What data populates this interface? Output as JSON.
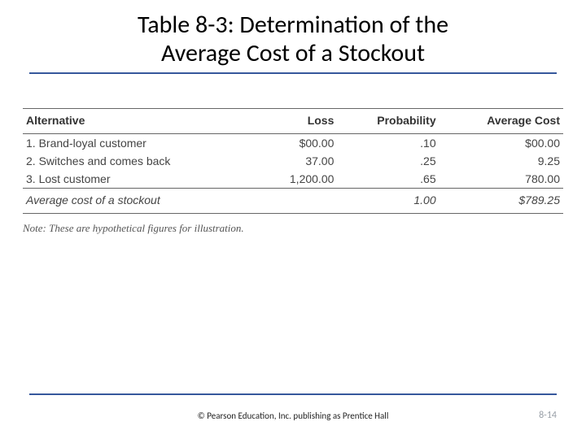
{
  "title": {
    "line1": "Table 8-3:  Determination of the",
    "line2": "Average Cost of a Stockout",
    "fontsize": 30,
    "color": "#000000",
    "underline_color": "#36589c"
  },
  "table": {
    "columns": [
      {
        "label": "Alternative",
        "align": "left"
      },
      {
        "label": "Loss",
        "align": "right"
      },
      {
        "label": "Probability",
        "align": "right"
      },
      {
        "label": "Average Cost",
        "align": "right"
      }
    ],
    "rows": [
      {
        "alt": "1. Brand-loyal customer",
        "loss": "$00.00",
        "prob": ".10",
        "avg": "$00.00"
      },
      {
        "alt": "2. Switches and comes back",
        "loss": "37.00",
        "prob": ".25",
        "avg": "9.25"
      },
      {
        "alt": "3. Lost customer",
        "loss": "1,200.00",
        "prob": ".65",
        "avg": "780.00"
      }
    ],
    "summary": {
      "label": "Average cost of a stockout",
      "loss": "",
      "prob": "1.00",
      "avg": "$789.25"
    },
    "header_fontsize": 14,
    "body_fontsize": 14,
    "border_color": "#666666",
    "text_color": "#444444"
  },
  "note": {
    "text": "Note: These are hypothetical figures for illustration.",
    "fontsize": 13,
    "color": "#555555"
  },
  "footer": {
    "copyright": "© Pearson Education, Inc. publishing as Prentice Hall",
    "pagenum": "8-14",
    "line_color": "#36589c",
    "pagenum_color": "#9aa1a8"
  },
  "background_color": "#ffffff"
}
